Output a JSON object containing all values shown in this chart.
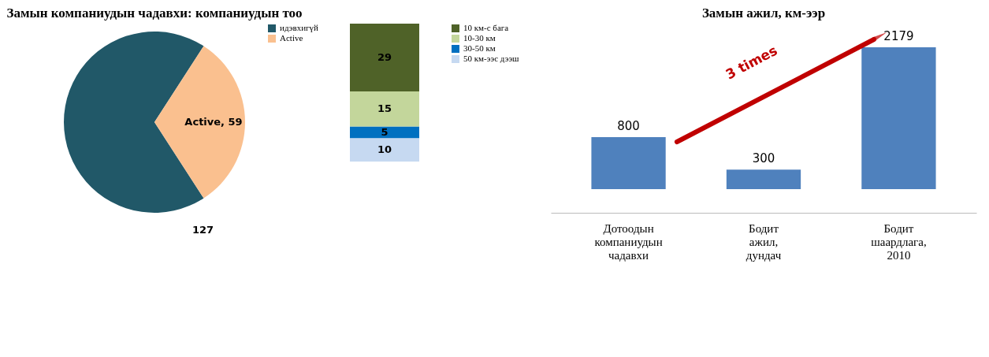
{
  "chart_data": [
    {
      "type": "pie",
      "title": "Замын компаниудын чадавхи: компаниудын тоо",
      "categories": [
        "идэвхигүй",
        "Active"
      ],
      "values": [
        127,
        59
      ],
      "colors": [
        "#215868",
        "#fac08f"
      ],
      "value_labels": [
        "127",
        "Active, 59"
      ],
      "legend": "right"
    },
    {
      "type": "bar",
      "stacked": true,
      "categories": [
        null
      ],
      "series": [
        {
          "name": "50 км-ээс дээш",
          "color": "#c6d9f1",
          "values": [
            10
          ]
        },
        {
          "name": "30-50 км",
          "color": "#0070c0",
          "values": [
            5
          ]
        },
        {
          "name": "10-30 км",
          "color": "#c3d69b",
          "values": [
            15
          ]
        },
        {
          "name": "10 км-с бага",
          "color": "#4f6228",
          "values": [
            29
          ]
        }
      ],
      "data_labels": true,
      "legend": "right"
    },
    {
      "type": "bar",
      "title": "Замын ажил, км-ээр",
      "categories": [
        "Дотоодын компаниудын чадавхи",
        "Бодит ажил, дундач",
        "Бодит шаардлага, 2010"
      ],
      "values": [
        800,
        300,
        2179
      ],
      "color": "#4f81bd",
      "data_labels": true,
      "annotations": [
        "3 times"
      ]
    }
  ]
}
